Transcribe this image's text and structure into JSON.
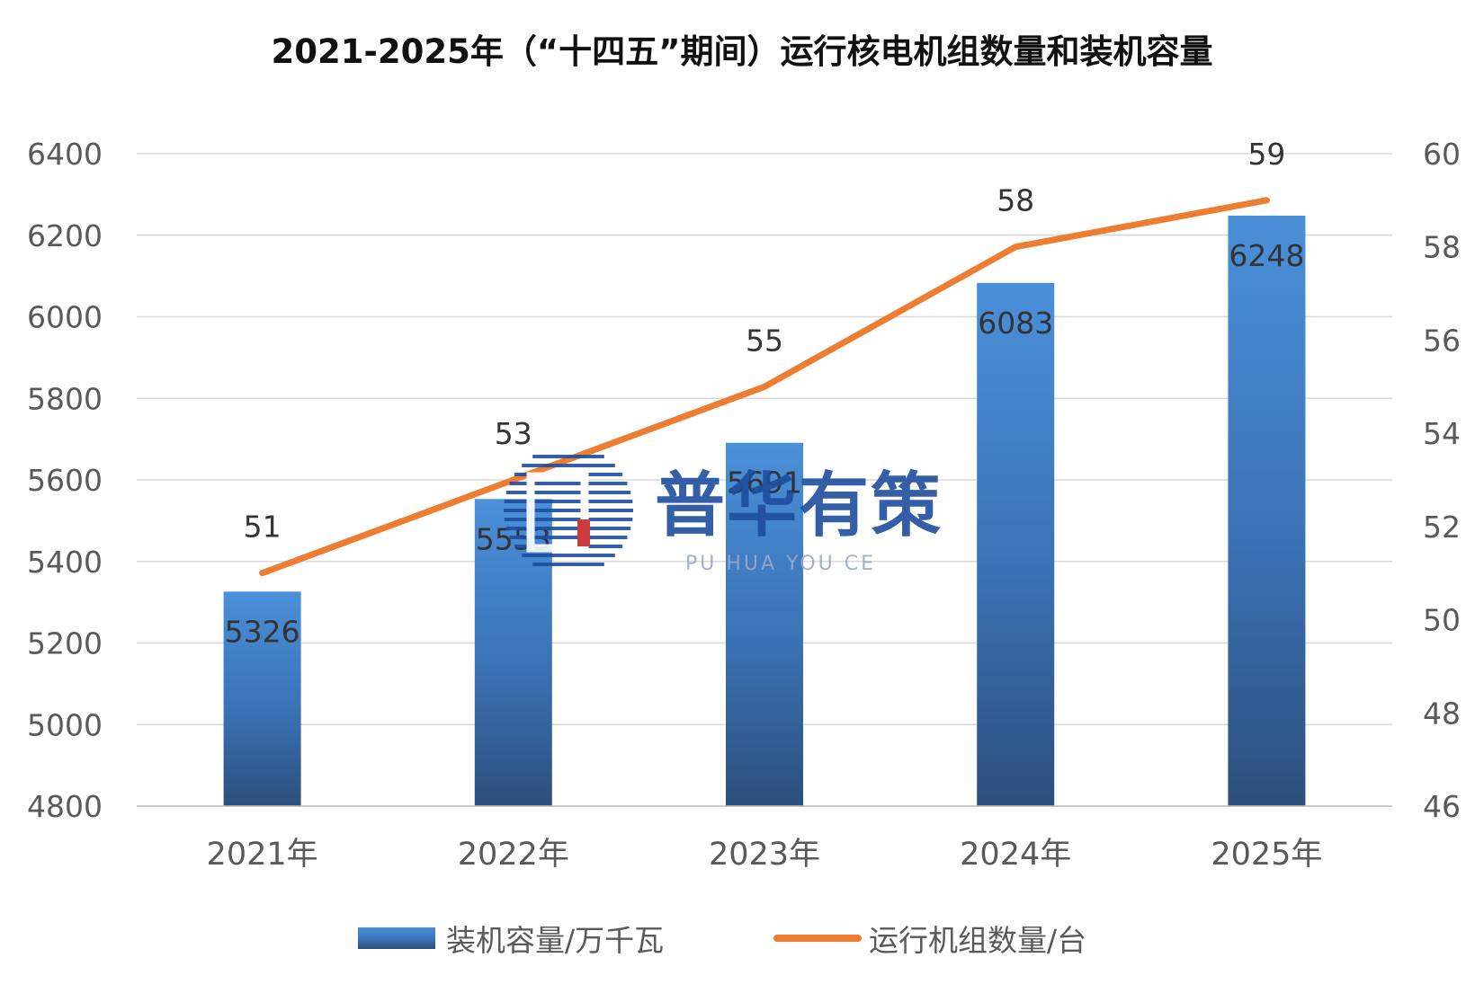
{
  "chart_data": {
    "type": "bar",
    "title": "2021-2025年（“十四五”期间）运行核电机组数量和装机容量",
    "categories": [
      "2021年",
      "2022年",
      "2023年",
      "2024年",
      "2025年"
    ],
    "series": [
      {
        "name": "装机容量/万千瓦",
        "type": "bar",
        "axis": "left",
        "values": [
          5326,
          5553,
          5691,
          6083,
          6248
        ],
        "color": "#3f7fc4"
      },
      {
        "name": "运行机组数量/台",
        "type": "line",
        "axis": "right",
        "values": [
          51,
          53,
          55,
          58,
          59
        ],
        "color": "#ed7d31"
      }
    ],
    "y_left": {
      "ylim": [
        4800,
        6400
      ],
      "ticks": [
        4800,
        5000,
        5200,
        5400,
        5600,
        5800,
        6000,
        6200,
        6400
      ]
    },
    "y_right": {
      "ylim": [
        46,
        60
      ],
      "ticks": [
        46,
        48,
        50,
        52,
        54,
        56,
        58,
        60
      ]
    },
    "grid": true,
    "legend": "bottom"
  },
  "watermark": {
    "name": "普华有策",
    "subtitle": "PU HUA YOU CE",
    "color": "#1f4e9e"
  }
}
